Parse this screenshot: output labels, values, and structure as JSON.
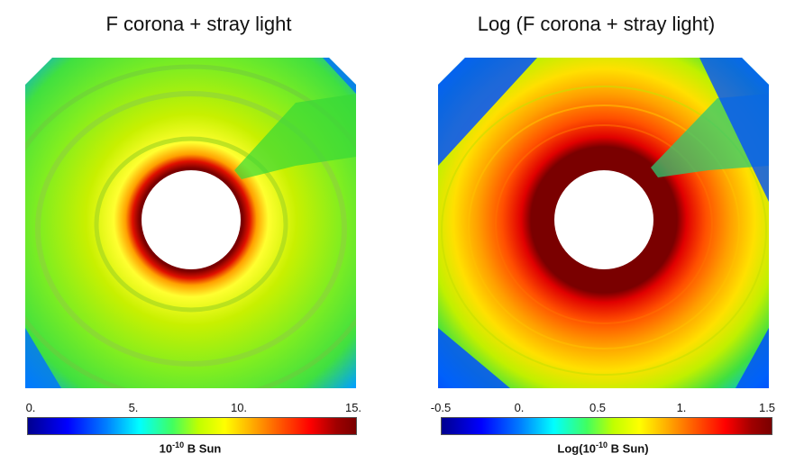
{
  "left_panel": {
    "title": "F corona + stray light",
    "colorbar": {
      "ticks": [
        "0.",
        "5.",
        "10.",
        "15."
      ],
      "unit_prefix": "10",
      "unit_exp": "-10",
      "unit_suffix": " B Sun"
    }
  },
  "right_panel": {
    "title": "Log (F corona + stray light)",
    "colorbar": {
      "ticks": [
        "-0.5",
        "0.",
        "0.5",
        "1.",
        "1.5"
      ],
      "unit_prefix": "Log(10",
      "unit_exp": "-10",
      "unit_suffix": " B Sun)"
    }
  },
  "colors": {
    "dark_red": "#7a0000",
    "red": "#e00000",
    "orange": "#ff8000",
    "yellow": "#ffff00",
    "yellow_green": "#c8f000",
    "green": "#40e040",
    "blue": "#0060ff"
  }
}
